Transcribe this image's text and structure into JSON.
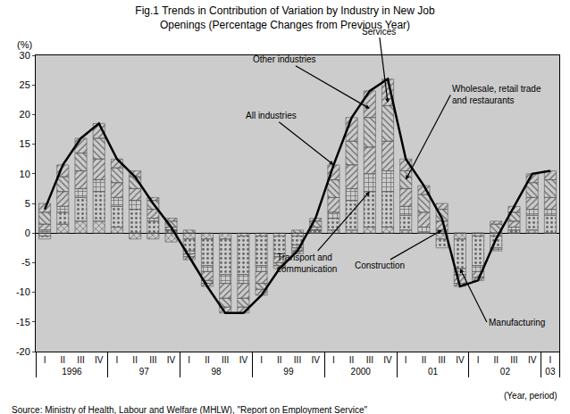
{
  "chart_data": {
    "type": "bar",
    "stacked": true,
    "title": "Fig.1 Trends in Contribution of Variation by Industry in New Job\nOpenings (Percentage Changes from Previous Year)",
    "y_label": "(%)",
    "x_label": "(Year, period)",
    "source": "Source: Ministry of Health, Labour and Welfare (MHLW), \"Report on Employment Service\"",
    "categories": [
      [
        "1996",
        "I"
      ],
      [
        "1996",
        "II"
      ],
      [
        "1996",
        "III"
      ],
      [
        "1996",
        "IV"
      ],
      [
        "97",
        "I"
      ],
      [
        "97",
        "II"
      ],
      [
        "97",
        "III"
      ],
      [
        "97",
        "IV"
      ],
      [
        "98",
        "I"
      ],
      [
        "98",
        "II"
      ],
      [
        "98",
        "III"
      ],
      [
        "98",
        "IV"
      ],
      [
        "99",
        "I"
      ],
      [
        "99",
        "II"
      ],
      [
        "99",
        "III"
      ],
      [
        "99",
        "IV"
      ],
      [
        "2000",
        "I"
      ],
      [
        "2000",
        "II"
      ],
      [
        "2000",
        "III"
      ],
      [
        "2000",
        "IV"
      ],
      [
        "01",
        "I"
      ],
      [
        "01",
        "II"
      ],
      [
        "01",
        "III"
      ],
      [
        "01",
        "IV"
      ],
      [
        "02",
        "I"
      ],
      [
        "02",
        "II"
      ],
      [
        "02",
        "III"
      ],
      [
        "02",
        "IV"
      ],
      [
        "03",
        "I"
      ]
    ],
    "series": [
      {
        "name": "Construction",
        "type": "bar",
        "color": "#dcdcdc",
        "values": [
          -0.5,
          1.5,
          2,
          2,
          1,
          -1,
          -1,
          -1.5,
          -1,
          -1,
          -1,
          -0.5,
          -0.5,
          -0.5,
          -0.5,
          0,
          0.5,
          0.5,
          1,
          1,
          0.5,
          0,
          -1,
          -1,
          -0.5,
          -0.5,
          0,
          0.5,
          0
        ]
      },
      {
        "name": "Manufacturing",
        "type": "bar",
        "color": "#cfe6f2",
        "values": [
          -0.5,
          2,
          4,
          5,
          3.5,
          4,
          2,
          0.5,
          -2,
          -4.5,
          -6,
          -6.5,
          -5,
          -3,
          -1.5,
          0.5,
          2,
          5,
          6,
          6,
          2.5,
          0,
          -1.5,
          -5,
          -5,
          -2,
          0.5,
          2.5,
          3
        ]
      },
      {
        "name": "Transport and\ncommunication",
        "type": "bar",
        "color": "#e4eef4",
        "values": [
          0.5,
          1,
          1.5,
          2,
          1.5,
          1.5,
          0.5,
          0,
          -0.5,
          -1,
          -1.5,
          -1.5,
          -1,
          -0.5,
          -0.5,
          0,
          1,
          2,
          3,
          3.5,
          1.5,
          1,
          0.5,
          -1,
          -1,
          -0.5,
          0.5,
          1,
          1
        ]
      },
      {
        "name": "Wholesale, retail trade\nand restaurants",
        "type": "bar",
        "color": "#ffffff",
        "values": [
          1,
          2.5,
          3,
          3.5,
          2.5,
          2,
          1.5,
          0.5,
          -0.5,
          -1.5,
          -2.5,
          -2.5,
          -2,
          -1,
          -0.5,
          0.5,
          2.5,
          4,
          4.5,
          5,
          3,
          2.5,
          1.5,
          -1.5,
          -1,
          0,
          1,
          2,
          2
        ]
      },
      {
        "name": "Services",
        "type": "bar",
        "color": "#f7f0f2",
        "values": [
          2,
          2.5,
          3,
          3.5,
          2.5,
          2,
          1.5,
          1,
          0.5,
          -0.5,
          -1.5,
          -1.5,
          -1,
          -0.5,
          0.5,
          1,
          3,
          4,
          5,
          6,
          3,
          3,
          2,
          0,
          0,
          1.5,
          1.5,
          2.5,
          3
        ]
      },
      {
        "name": "Other industries",
        "type": "bar",
        "color": "#f4d2da",
        "values": [
          1.5,
          2,
          2.5,
          2.5,
          1.5,
          1,
          0.5,
          0.5,
          -0.5,
          -0.5,
          -1,
          -1,
          -1,
          -0.5,
          -0.5,
          0.5,
          2.5,
          4,
          4.5,
          4.5,
          2,
          1.5,
          1,
          -0.5,
          -0.5,
          0.5,
          1,
          1.5,
          1.5
        ]
      },
      {
        "name": "All industries",
        "type": "line",
        "color": "#000000",
        "values": [
          4,
          11.5,
          16,
          18.5,
          12.5,
          9.5,
          5,
          1,
          -4,
          -9,
          -13.5,
          -13.5,
          -10.5,
          -6,
          -3,
          2.5,
          11.5,
          19.5,
          24,
          26,
          12.5,
          8,
          2.5,
          -9,
          -8,
          -1,
          4.5,
          10,
          10.5
        ]
      }
    ],
    "ylim": [
      -20,
      30
    ],
    "yticks": [
      -20,
      -15,
      -10,
      -5,
      0,
      5,
      10,
      15,
      20,
      25,
      30
    ],
    "grid": false
  }
}
